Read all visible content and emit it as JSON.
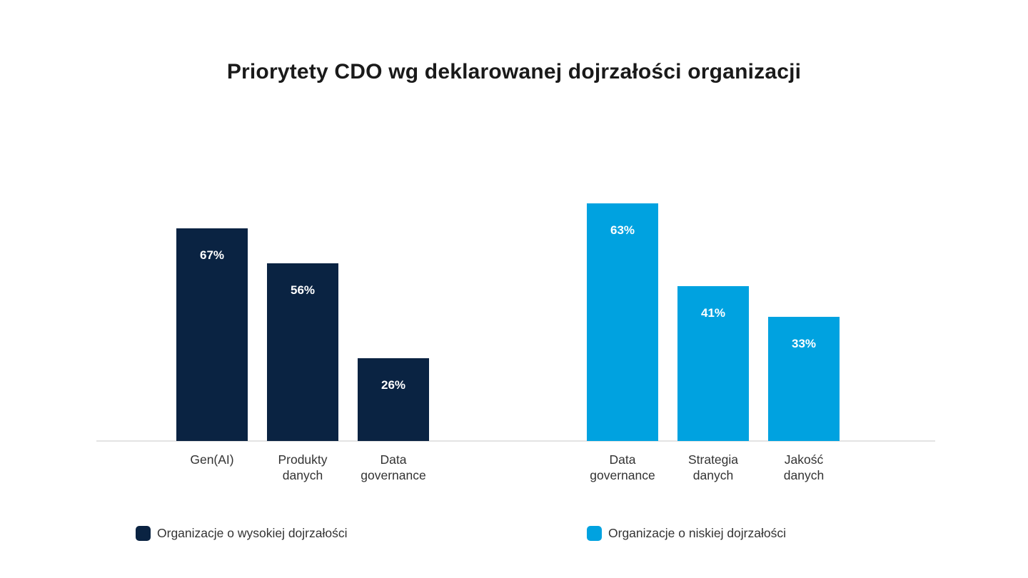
{
  "title": "Priorytety CDO wg deklarowanej dojrzałości organizacji",
  "colors": {
    "high_maturity_navy": "#0a2342",
    "low_maturity_blue": "#00a2e0",
    "axis_line": "#e3e3e3",
    "category_text": "#333333",
    "title_text": "#1a1a1a",
    "value_label_text": "#ffffff",
    "background": "#ffffff"
  },
  "chart_data": [
    {
      "type": "bar",
      "series_name": "Organizacje o wysokiej dojrzałości",
      "categories": [
        "Gen(AI)",
        "Produkty danych",
        "Data governance"
      ],
      "tick_labels": [
        "Gen(AI)",
        "Produkty\ndanych",
        "Data\ngovernance"
      ],
      "values": [
        67,
        56,
        26
      ],
      "value_labels": [
        "67%",
        "56%",
        "26%"
      ],
      "unit": "%",
      "color": "#0a2342",
      "ylim": [
        0,
        67
      ],
      "grid": false,
      "value_label_position": "inside-top",
      "legend_position": "bottom"
    },
    {
      "type": "bar",
      "series_name": "Organizacje o niskiej dojrzałości",
      "categories": [
        "Data governance",
        "Strategia danych",
        "Jakość danych"
      ],
      "tick_labels": [
        "Data\ngovernance",
        "Strategia\ndanych",
        "Jakość\ndanych"
      ],
      "values": [
        63,
        41,
        33
      ],
      "value_labels": [
        "63%",
        "41%",
        "33%"
      ],
      "unit": "%",
      "color": "#00a2e0",
      "ylim": [
        0,
        63
      ],
      "grid": false,
      "value_label_position": "inside-top",
      "legend_position": "bottom"
    }
  ],
  "legend": [
    {
      "label": "Organizacje o wysokiej dojrzałości",
      "color": "#0a2342"
    },
    {
      "label": "Organizacje o niskiej dojrzałości",
      "color": "#00a2e0"
    }
  ]
}
